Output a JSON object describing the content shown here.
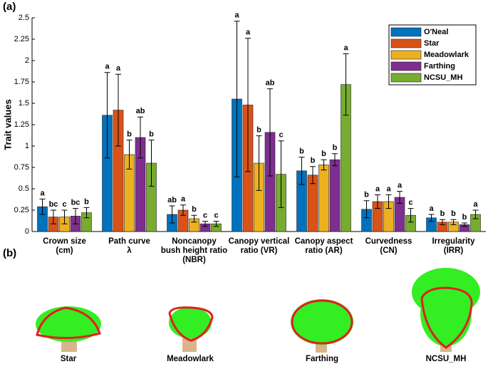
{
  "chart_data": {
    "type": "bar",
    "panel_label": "(a)",
    "y_label": "Trait values",
    "categories": [
      "Crown size\n(cm)",
      "Path curve\nλ",
      "Noncanopy\nbush height ratio\n(NBR)",
      "Canopy vertical\nratio (VR)",
      "Canopy aspect\nratio (AR)",
      "Curvedness\n(CN)",
      "Irregularity\n(IRR)"
    ],
    "series": [
      {
        "name": "O'Neal",
        "color": "#0072BD",
        "values": [
          0.29,
          1.36,
          0.2,
          1.55,
          0.71,
          0.26,
          0.16
        ],
        "errors": [
          0.09,
          0.5,
          0.1,
          0.91,
          0.16,
          0.1,
          0.04
        ],
        "letters": [
          "a",
          "a",
          "ab",
          "a",
          "b",
          "b",
          "a"
        ]
      },
      {
        "name": "Star",
        "color": "#D95319",
        "values": [
          0.17,
          1.42,
          0.25,
          1.48,
          0.66,
          0.35,
          0.11
        ],
        "errors": [
          0.08,
          0.42,
          0.06,
          0.78,
          0.1,
          0.08,
          0.03
        ],
        "letters": [
          "bc",
          "a",
          "a",
          "a",
          "b",
          "a",
          "b"
        ]
      },
      {
        "name": "Meadowlark",
        "color": "#EDB120",
        "values": [
          0.17,
          0.9,
          0.15,
          0.8,
          0.78,
          0.35,
          0.11
        ],
        "errors": [
          0.08,
          0.17,
          0.04,
          0.32,
          0.06,
          0.08,
          0.03
        ],
        "letters": [
          "c",
          "b",
          "b",
          "b",
          "b",
          "a",
          "b"
        ]
      },
      {
        "name": "Farthing",
        "color": "#7E2F8E",
        "values": [
          0.18,
          1.1,
          0.09,
          1.16,
          0.84,
          0.4,
          0.08
        ],
        "errors": [
          0.09,
          0.24,
          0.03,
          0.51,
          0.07,
          0.07,
          0.02
        ],
        "letters": [
          "bc",
          "ab",
          "c",
          "ab",
          "b",
          "a",
          "b"
        ]
      },
      {
        "name": "NCSU_MH",
        "color": "#77AC30",
        "values": [
          0.22,
          0.8,
          0.09,
          0.67,
          1.72,
          0.19,
          0.2
        ],
        "errors": [
          0.06,
          0.27,
          0.03,
          0.39,
          0.36,
          0.08,
          0.05
        ],
        "letters": [
          "b",
          "b",
          "c",
          "c",
          "a",
          "c",
          "a"
        ]
      }
    ],
    "ylim": [
      0,
      2.5
    ],
    "yticks": [
      0,
      0.25,
      0.5,
      0.75,
      1,
      1.25,
      1.5,
      1.75,
      2,
      2.25,
      2.5
    ],
    "legend": "upper right"
  },
  "panel_b": {
    "panel_label": "(b)",
    "trees": [
      "Star",
      "Meadowlark",
      "Farthing",
      "NCSU_MH"
    ]
  }
}
